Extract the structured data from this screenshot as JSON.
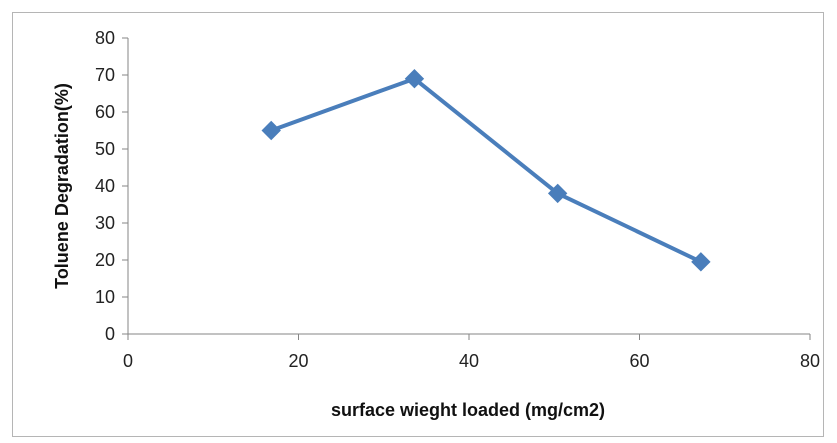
{
  "chart_data": {
    "type": "scatter",
    "title": "",
    "xlabel": "surface wieght loaded (mg/cm2)",
    "ylabel": "Toluene Degradation(%)",
    "xlim": [
      0,
      80
    ],
    "ylim": [
      0,
      80
    ],
    "xticks": [
      0,
      20,
      40,
      60,
      80
    ],
    "yticks": [
      0,
      10,
      20,
      30,
      40,
      50,
      60,
      70,
      80
    ],
    "grid": false,
    "legend": "none",
    "series": [
      {
        "x": [
          16.8,
          33.6,
          50.4,
          67.2
        ],
        "y": [
          55,
          69,
          38,
          19.5
        ],
        "color": "#4a7ebb",
        "marker": "diamond",
        "connected": true
      }
    ]
  }
}
